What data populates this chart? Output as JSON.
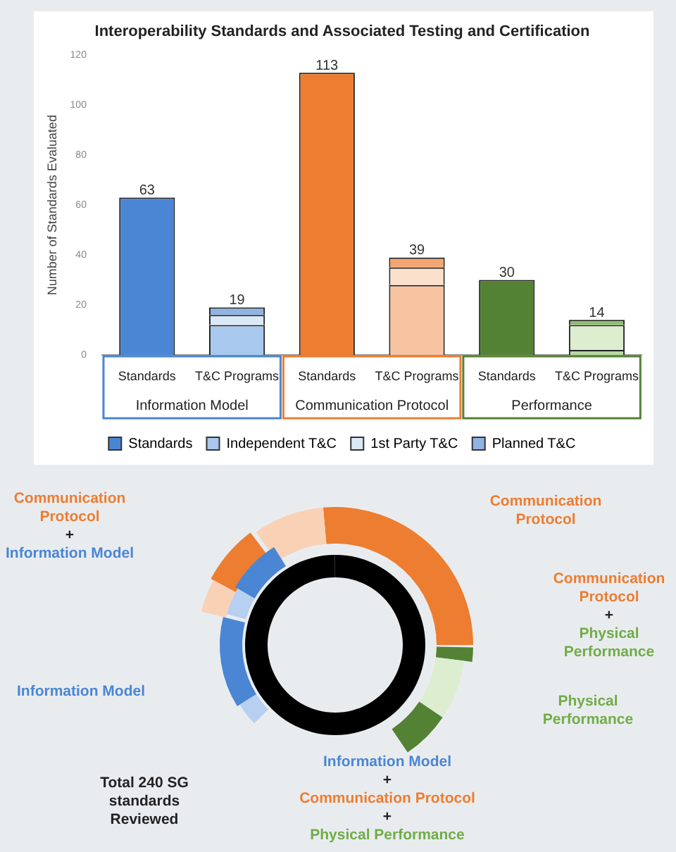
{
  "chart_data": [
    {
      "type": "bar",
      "title": "Interoperability Standards and Associated Testing and Certification",
      "ylabel": "Number of Standards Evaluated",
      "categories": [
        "Standards",
        "T&C Programs",
        "Standards",
        "T&C Programs",
        "Standards",
        "T&C Programs"
      ],
      "stacked": true,
      "ylim": [
        0,
        120
      ],
      "yticks": [
        0,
        20,
        40,
        60,
        80,
        100,
        120
      ],
      "grid": false,
      "legend": "bottom",
      "totals": [
        "63",
        "19",
        "113",
        "39",
        "30",
        "14"
      ],
      "annotations": [
        "Information Model",
        "Communication Protocol",
        "Performance"
      ],
      "series": [
        {
          "name": "Standards",
          "color": "#4a86d4",
          "values": [
            63,
            null,
            113,
            null,
            30,
            null
          ],
          "colors": [
            "#4a86d4",
            "#4a86d4",
            "#ed7d31",
            "#ed7d31",
            "#548235",
            "#548235"
          ]
        },
        {
          "name": "Independent T&C",
          "color": "#a9c8ee",
          "values": [
            null,
            12,
            null,
            28,
            null,
            2
          ],
          "colors": [
            "#a9c8ee",
            "#a9c8ee",
            "#f7c3a0",
            "#f7c3a0",
            "#b9d9a4",
            "#b9d9a4"
          ]
        },
        {
          "name": "1st Party T&C",
          "color": "#dbe8f8",
          "values": [
            null,
            4,
            null,
            7,
            null,
            10
          ],
          "colors": [
            "#dbe8f8",
            "#dbe8f8",
            "#fbe0cc",
            "#fbe0cc",
            "#dcedd0",
            "#dcedd0"
          ]
        },
        {
          "name": "Planned T&C",
          "color": "#8fb4e3",
          "values": [
            null,
            3,
            null,
            4,
            null,
            2
          ],
          "colors": [
            "#8fb4e3",
            "#8fb4e3",
            "#f4a672",
            "#f4a672",
            "#8fbf6d",
            "#8fbf6d"
          ]
        }
      ]
    },
    {
      "type": "other",
      "annotations": [
        "Communication Protocol + Information Model",
        "Communication Protocol",
        "Communication Protocol + Physical Performance",
        "Information Model",
        "Physical Performance",
        "Total 240 SG standards Reviewed",
        "Information Model + Communication Protocol + Physical Performance"
      ]
    }
  ]
}
